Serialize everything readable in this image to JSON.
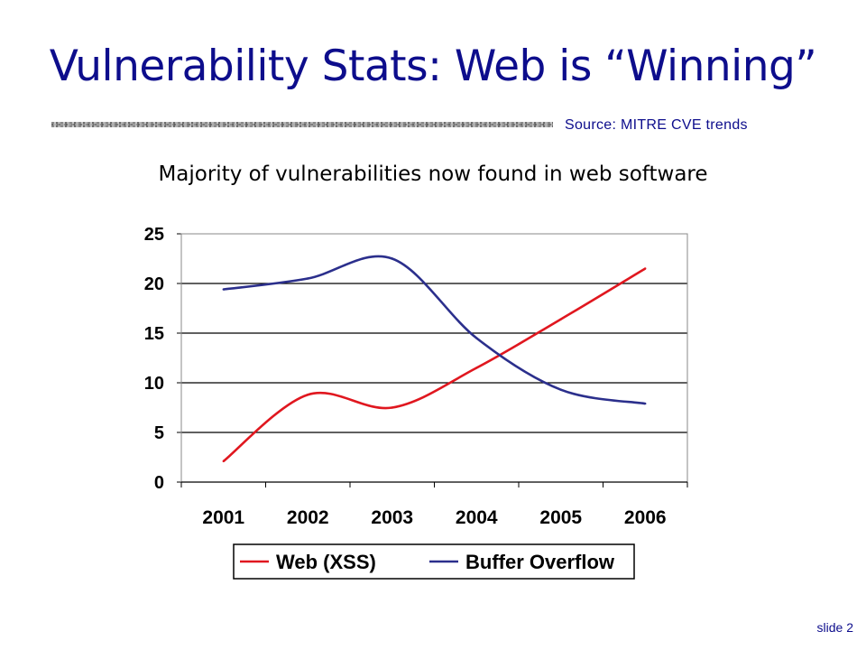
{
  "slide": {
    "title": "Vulnerability Stats: Web is “Winning”",
    "source": "Source:  MITRE CVE trends",
    "subtitle": "Majority of vulnerabilities now found in web software",
    "slide_number": "slide 2"
  },
  "chart_data": {
    "type": "line",
    "title": "",
    "xlabel": "",
    "ylabel": "",
    "categories": [
      "2001",
      "2002",
      "2003",
      "2004",
      "2005",
      "2006"
    ],
    "y_ticks": [
      "0",
      "5",
      "10",
      "15",
      "20",
      "25"
    ],
    "ylim": [
      0,
      25
    ],
    "grid": true,
    "legend": "bottom",
    "series": [
      {
        "name": "Web (XSS)",
        "color": "#e0171f",
        "values": [
          2.1,
          8.8,
          7.5,
          11.5,
          16.4,
          21.5
        ]
      },
      {
        "name": "Buffer Overflow",
        "color": "#2b2f8c",
        "values": [
          19.4,
          20.5,
          22.5,
          14.5,
          9.3,
          7.9
        ]
      }
    ]
  }
}
